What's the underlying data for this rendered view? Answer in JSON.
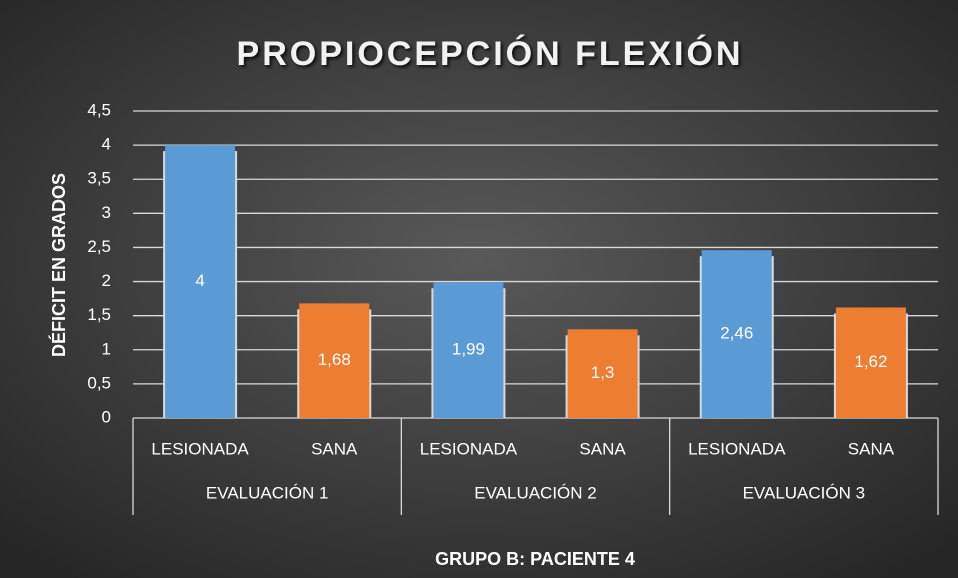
{
  "chart_data": {
    "type": "bar",
    "title": "PROPIOCEPCIÓN FLEXIÓN",
    "ylabel": "DÉFICIT EN GRADOS",
    "xlabel": "GRUPO B: PACIENTE 4",
    "categories": [
      "LESIONADA",
      "SANA",
      "LESIONADA",
      "SANA",
      "LESIONADA",
      "SANA"
    ],
    "groups": [
      "EVALUACIÓN 1",
      "EVALUACIÓN 2",
      "EVALUACIÓN 3"
    ],
    "values": [
      4,
      1.68,
      1.99,
      1.3,
      2.46,
      1.62
    ],
    "value_labels": [
      "4",
      "1,68",
      "1,99",
      "1,3",
      "2,46",
      "1,62"
    ],
    "colors": [
      "#5b9bd5",
      "#ed7d31",
      "#5b9bd5",
      "#ed7d31",
      "#5b9bd5",
      "#ed7d31"
    ],
    "ylim": [
      0,
      4.5
    ],
    "yticks": [
      0,
      {
        "value": 0.5,
        "label": "0,5"
      },
      1,
      {
        "value": 1.5,
        "label": "1,5"
      },
      2,
      {
        "value": 2.5,
        "label": "2,5"
      },
      3,
      {
        "value": 3.5,
        "label": "3,5"
      },
      4,
      {
        "value": 4.5,
        "label": "4,5"
      }
    ],
    "grid": true
  }
}
